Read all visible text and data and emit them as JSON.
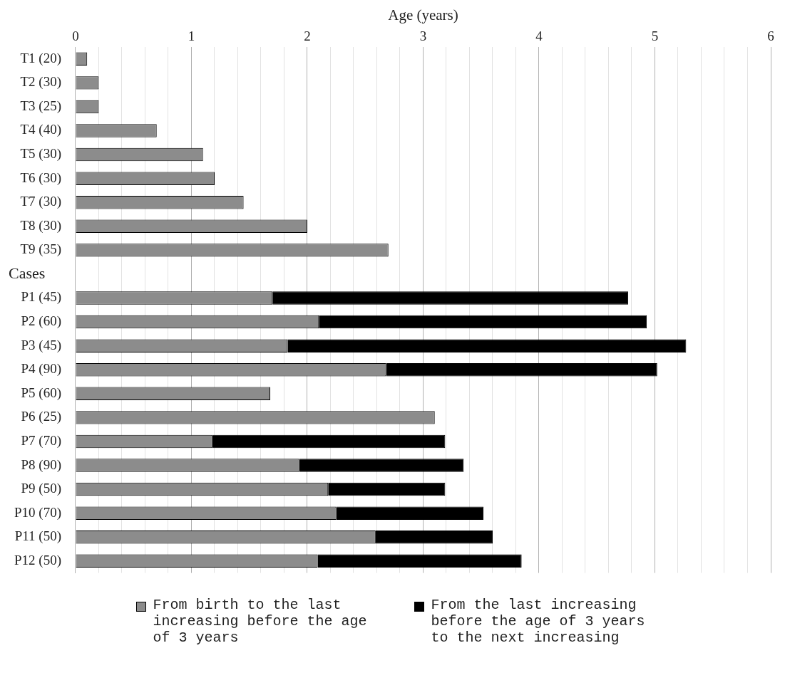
{
  "chart_data": {
    "type": "bar",
    "orientation": "horizontal",
    "stacked": true,
    "xlabel": "Age (years)",
    "ylabel": "Cases",
    "categories": [
      "T1 (20)",
      "T2 (30)",
      "T3 (25)",
      "T4 (40)",
      "T5 (30)",
      "T6 (30)",
      "T7 (30)",
      "T8 (30)",
      "T9 (35)",
      null,
      "P1 (45)",
      "P2 (60)",
      "P3 (45)",
      "P4 (90)",
      "P5 (60)",
      "P6 (25)",
      "P7 (70)",
      "P8 (90)",
      "P9 (50)",
      "P10 (70)",
      "P11 (50)",
      "P12 (50)"
    ],
    "series": [
      {
        "name": "From birth to the last increasing before the age of 3 years",
        "color": "#8c8c8c",
        "values": [
          0.1,
          0.2,
          0.2,
          0.7,
          1.1,
          1.2,
          1.45,
          2.0,
          2.7,
          null,
          1.7,
          2.1,
          1.83,
          2.68,
          1.68,
          3.1,
          1.18,
          1.93,
          2.18,
          2.25,
          2.59,
          2.09
        ]
      },
      {
        "name": "From the last increasing before the age of 3 years to the next increasing",
        "color": "#000000",
        "values": [
          null,
          null,
          null,
          null,
          null,
          null,
          null,
          null,
          null,
          null,
          3.07,
          2.83,
          3.44,
          2.34,
          null,
          null,
          2.01,
          1.42,
          1.01,
          1.27,
          1.01,
          1.76
        ]
      }
    ],
    "xlim": [
      0,
      6
    ],
    "xticks": [
      0,
      {
        "value": 0.2,
        "label": null
      },
      {
        "value": 0.4,
        "label": null
      },
      {
        "value": 0.6,
        "label": null
      },
      {
        "value": 0.8,
        "label": null
      },
      1,
      {
        "value": 1.2,
        "label": null
      },
      {
        "value": 1.4,
        "label": null
      },
      {
        "value": 1.6,
        "label": null
      },
      {
        "value": 1.8,
        "label": null
      },
      2,
      {
        "value": 2.2,
        "label": null
      },
      {
        "value": 2.4,
        "label": null
      },
      {
        "value": 2.6,
        "label": null
      },
      {
        "value": 2.8,
        "label": null
      },
      3,
      {
        "value": 3.2,
        "label": null
      },
      {
        "value": 3.4,
        "label": null
      },
      {
        "value": 3.6,
        "label": null
      },
      {
        "value": 3.8,
        "label": null
      },
      4,
      {
        "value": 4.2,
        "label": null
      },
      {
        "value": 4.4,
        "label": null
      },
      {
        "value": 4.6,
        "label": null
      },
      {
        "value": 4.8,
        "label": null
      },
      5,
      {
        "value": 5.2,
        "label": null
      },
      {
        "value": 5.4,
        "label": null
      },
      {
        "value": 5.6,
        "label": null
      },
      {
        "value": 5.8,
        "label": null
      },
      6
    ],
    "grid": "x",
    "legend": "bottom"
  }
}
